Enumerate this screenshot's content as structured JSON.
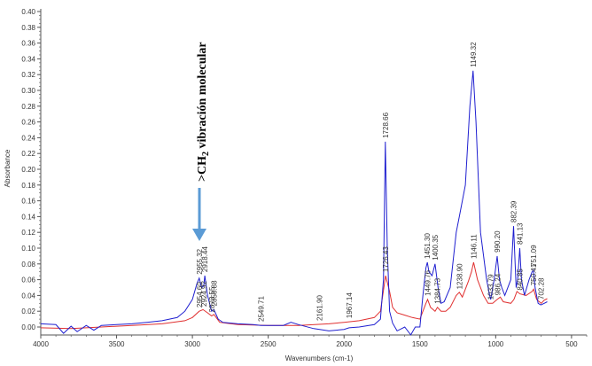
{
  "chart_data": {
    "type": "line",
    "title": "",
    "xlabel": "Wavenumbers (cm-1)",
    "ylabel": "Absorbance",
    "xlim": [
      4000,
      400
    ],
    "ylim": [
      0.0,
      0.4
    ],
    "x_ticks": [
      4000,
      3500,
      3000,
      2500,
      2000,
      1500,
      1000,
      500
    ],
    "y_ticks": [
      0.0,
      0.02,
      0.04,
      0.06,
      0.08,
      0.1,
      0.12,
      0.14,
      0.16,
      0.18,
      0.2,
      0.22,
      0.24,
      0.26,
      0.28,
      0.3,
      0.32,
      0.34,
      0.36,
      0.38,
      0.4
    ],
    "grid": false,
    "series": [
      {
        "name": "blue spectrum",
        "color": "#1f1fd0",
        "points": [
          [
            4000,
            0.004
          ],
          [
            3900,
            0.003
          ],
          [
            3850,
            -0.008
          ],
          [
            3800,
            0.001
          ],
          [
            3760,
            -0.006
          ],
          [
            3700,
            0.002
          ],
          [
            3650,
            -0.004
          ],
          [
            3600,
            0.002
          ],
          [
            3500,
            0.003
          ],
          [
            3400,
            0.004
          ],
          [
            3300,
            0.006
          ],
          [
            3200,
            0.008
          ],
          [
            3100,
            0.012
          ],
          [
            3050,
            0.02
          ],
          [
            3000,
            0.035
          ],
          [
            2970,
            0.055
          ],
          [
            2955,
            0.062
          ],
          [
            2940,
            0.05
          ],
          [
            2925,
            0.052
          ],
          [
            2918,
            0.065
          ],
          [
            2900,
            0.04
          ],
          [
            2873,
            0.02
          ],
          [
            2858,
            0.022
          ],
          [
            2830,
            0.01
          ],
          [
            2800,
            0.006
          ],
          [
            2700,
            0.004
          ],
          [
            2600,
            0.003
          ],
          [
            2549,
            0.002
          ],
          [
            2400,
            0.002
          ],
          [
            2350,
            0.006
          ],
          [
            2300,
            0.003
          ],
          [
            2200,
            -0.002
          ],
          [
            2161,
            -0.003
          ],
          [
            2100,
            -0.005
          ],
          [
            2000,
            -0.003
          ],
          [
            1967,
            -0.001
          ],
          [
            1900,
            0.0
          ],
          [
            1800,
            0.003
          ],
          [
            1760,
            0.01
          ],
          [
            1740,
            0.06
          ],
          [
            1728,
            0.235
          ],
          [
            1715,
            0.1
          ],
          [
            1700,
            0.02
          ],
          [
            1680,
            0.005
          ],
          [
            1650,
            -0.005
          ],
          [
            1600,
            0.0
          ],
          [
            1560,
            -0.01
          ],
          [
            1530,
            0.0
          ],
          [
            1500,
            0.0
          ],
          [
            1480,
            0.04
          ],
          [
            1460,
            0.075
          ],
          [
            1451,
            0.082
          ],
          [
            1440,
            0.07
          ],
          [
            1420,
            0.065
          ],
          [
            1400,
            0.08
          ],
          [
            1380,
            0.05
          ],
          [
            1360,
            0.03
          ],
          [
            1340,
            0.032
          ],
          [
            1300,
            0.05
          ],
          [
            1260,
            0.12
          ],
          [
            1240,
            0.14
          ],
          [
            1200,
            0.18
          ],
          [
            1170,
            0.28
          ],
          [
            1149,
            0.325
          ],
          [
            1130,
            0.26
          ],
          [
            1100,
            0.12
          ],
          [
            1060,
            0.06
          ],
          [
            1040,
            0.04
          ],
          [
            1033,
            0.035
          ],
          [
            1010,
            0.06
          ],
          [
            990,
            0.09
          ],
          [
            975,
            0.06
          ],
          [
            960,
            0.05
          ],
          [
            940,
            0.04
          ],
          [
            900,
            0.06
          ],
          [
            882,
            0.128
          ],
          [
            865,
            0.05
          ],
          [
            855,
            0.06
          ],
          [
            841,
            0.1
          ],
          [
            830,
            0.06
          ],
          [
            810,
            0.04
          ],
          [
            780,
            0.06
          ],
          [
            760,
            0.07
          ],
          [
            751,
            0.072
          ],
          [
            740,
            0.05
          ],
          [
            720,
            0.03
          ],
          [
            702,
            0.028
          ],
          [
            680,
            0.03
          ],
          [
            660,
            0.032
          ]
        ]
      },
      {
        "name": "red spectrum",
        "color": "#e03030",
        "points": [
          [
            4000,
            -0.001
          ],
          [
            3800,
            -0.002
          ],
          [
            3600,
            0.0
          ],
          [
            3400,
            0.002
          ],
          [
            3200,
            0.004
          ],
          [
            3050,
            0.008
          ],
          [
            3000,
            0.012
          ],
          [
            2955,
            0.02
          ],
          [
            2930,
            0.022
          ],
          [
            2900,
            0.018
          ],
          [
            2873,
            0.014
          ],
          [
            2858,
            0.016
          ],
          [
            2820,
            0.006
          ],
          [
            2700,
            0.003
          ],
          [
            2500,
            0.002
          ],
          [
            2300,
            0.002
          ],
          [
            2100,
            0.004
          ],
          [
            2000,
            0.006
          ],
          [
            1900,
            0.008
          ],
          [
            1800,
            0.012
          ],
          [
            1760,
            0.02
          ],
          [
            1726,
            0.065
          ],
          [
            1700,
            0.045
          ],
          [
            1680,
            0.025
          ],
          [
            1650,
            0.018
          ],
          [
            1600,
            0.015
          ],
          [
            1550,
            0.012
          ],
          [
            1500,
            0.01
          ],
          [
            1460,
            0.03
          ],
          [
            1449,
            0.035
          ],
          [
            1430,
            0.025
          ],
          [
            1400,
            0.02
          ],
          [
            1384,
            0.025
          ],
          [
            1360,
            0.02
          ],
          [
            1330,
            0.02
          ],
          [
            1300,
            0.025
          ],
          [
            1260,
            0.04
          ],
          [
            1240,
            0.044
          ],
          [
            1220,
            0.038
          ],
          [
            1180,
            0.058
          ],
          [
            1160,
            0.07
          ],
          [
            1146,
            0.082
          ],
          [
            1120,
            0.06
          ],
          [
            1080,
            0.04
          ],
          [
            1050,
            0.03
          ],
          [
            1020,
            0.03
          ],
          [
            990,
            0.035
          ],
          [
            970,
            0.038
          ],
          [
            950,
            0.032
          ],
          [
            900,
            0.03
          ],
          [
            880,
            0.035
          ],
          [
            860,
            0.045
          ],
          [
            840,
            0.042
          ],
          [
            800,
            0.04
          ],
          [
            760,
            0.045
          ],
          [
            750,
            0.048
          ],
          [
            730,
            0.035
          ],
          [
            700,
            0.03
          ],
          [
            680,
            0.034
          ],
          [
            660,
            0.036
          ]
        ]
      }
    ],
    "peak_labels": [
      {
        "text": "2955.32",
        "x": 2955
      },
      {
        "text": "2918.44",
        "x": 2918
      },
      {
        "text": "2954.60",
        "x": 2954
      },
      {
        "text": "2924.92",
        "x": 2925
      },
      {
        "text": "2873.55",
        "x": 2873
      },
      {
        "text": "2858.88",
        "x": 2858
      },
      {
        "text": "2549.71",
        "x": 2549
      },
      {
        "text": "2161.90",
        "x": 2161
      },
      {
        "text": "1967.14",
        "x": 1967
      },
      {
        "text": "1728.66",
        "x": 1728
      },
      {
        "text": "1726.43",
        "x": 1726
      },
      {
        "text": "1451.30",
        "x": 1451
      },
      {
        "text": "1449.76",
        "x": 1449
      },
      {
        "text": "1400.35",
        "x": 1400
      },
      {
        "text": "1384.73",
        "x": 1384
      },
      {
        "text": "1238.90",
        "x": 1238
      },
      {
        "text": "1149.32",
        "x": 1149
      },
      {
        "text": "1146.11",
        "x": 1146
      },
      {
        "text": "1033.79",
        "x": 1033
      },
      {
        "text": "990.20",
        "x": 990
      },
      {
        "text": "986.24",
        "x": 986
      },
      {
        "text": "882.39",
        "x": 882
      },
      {
        "text": "841.13",
        "x": 841
      },
      {
        "text": "840.85",
        "x": 840
      },
      {
        "text": "751.09",
        "x": 751
      },
      {
        "text": "750.41",
        "x": 750
      },
      {
        "text": "702.28",
        "x": 702
      }
    ],
    "annotations": [
      {
        "text": ">CH2 vibración molecular",
        "main": ">CH",
        "sub": "2",
        "rest": " vibración molecular",
        "arrow_color": "#5b9bd5",
        "x": 2950
      }
    ]
  },
  "labels": {
    "xlabel": "Wavenumbers (cm-1)",
    "ylabel": "Absorbance",
    "annot_main": ">CH",
    "annot_sub": "2",
    "annot_rest": " vibración molecular"
  }
}
